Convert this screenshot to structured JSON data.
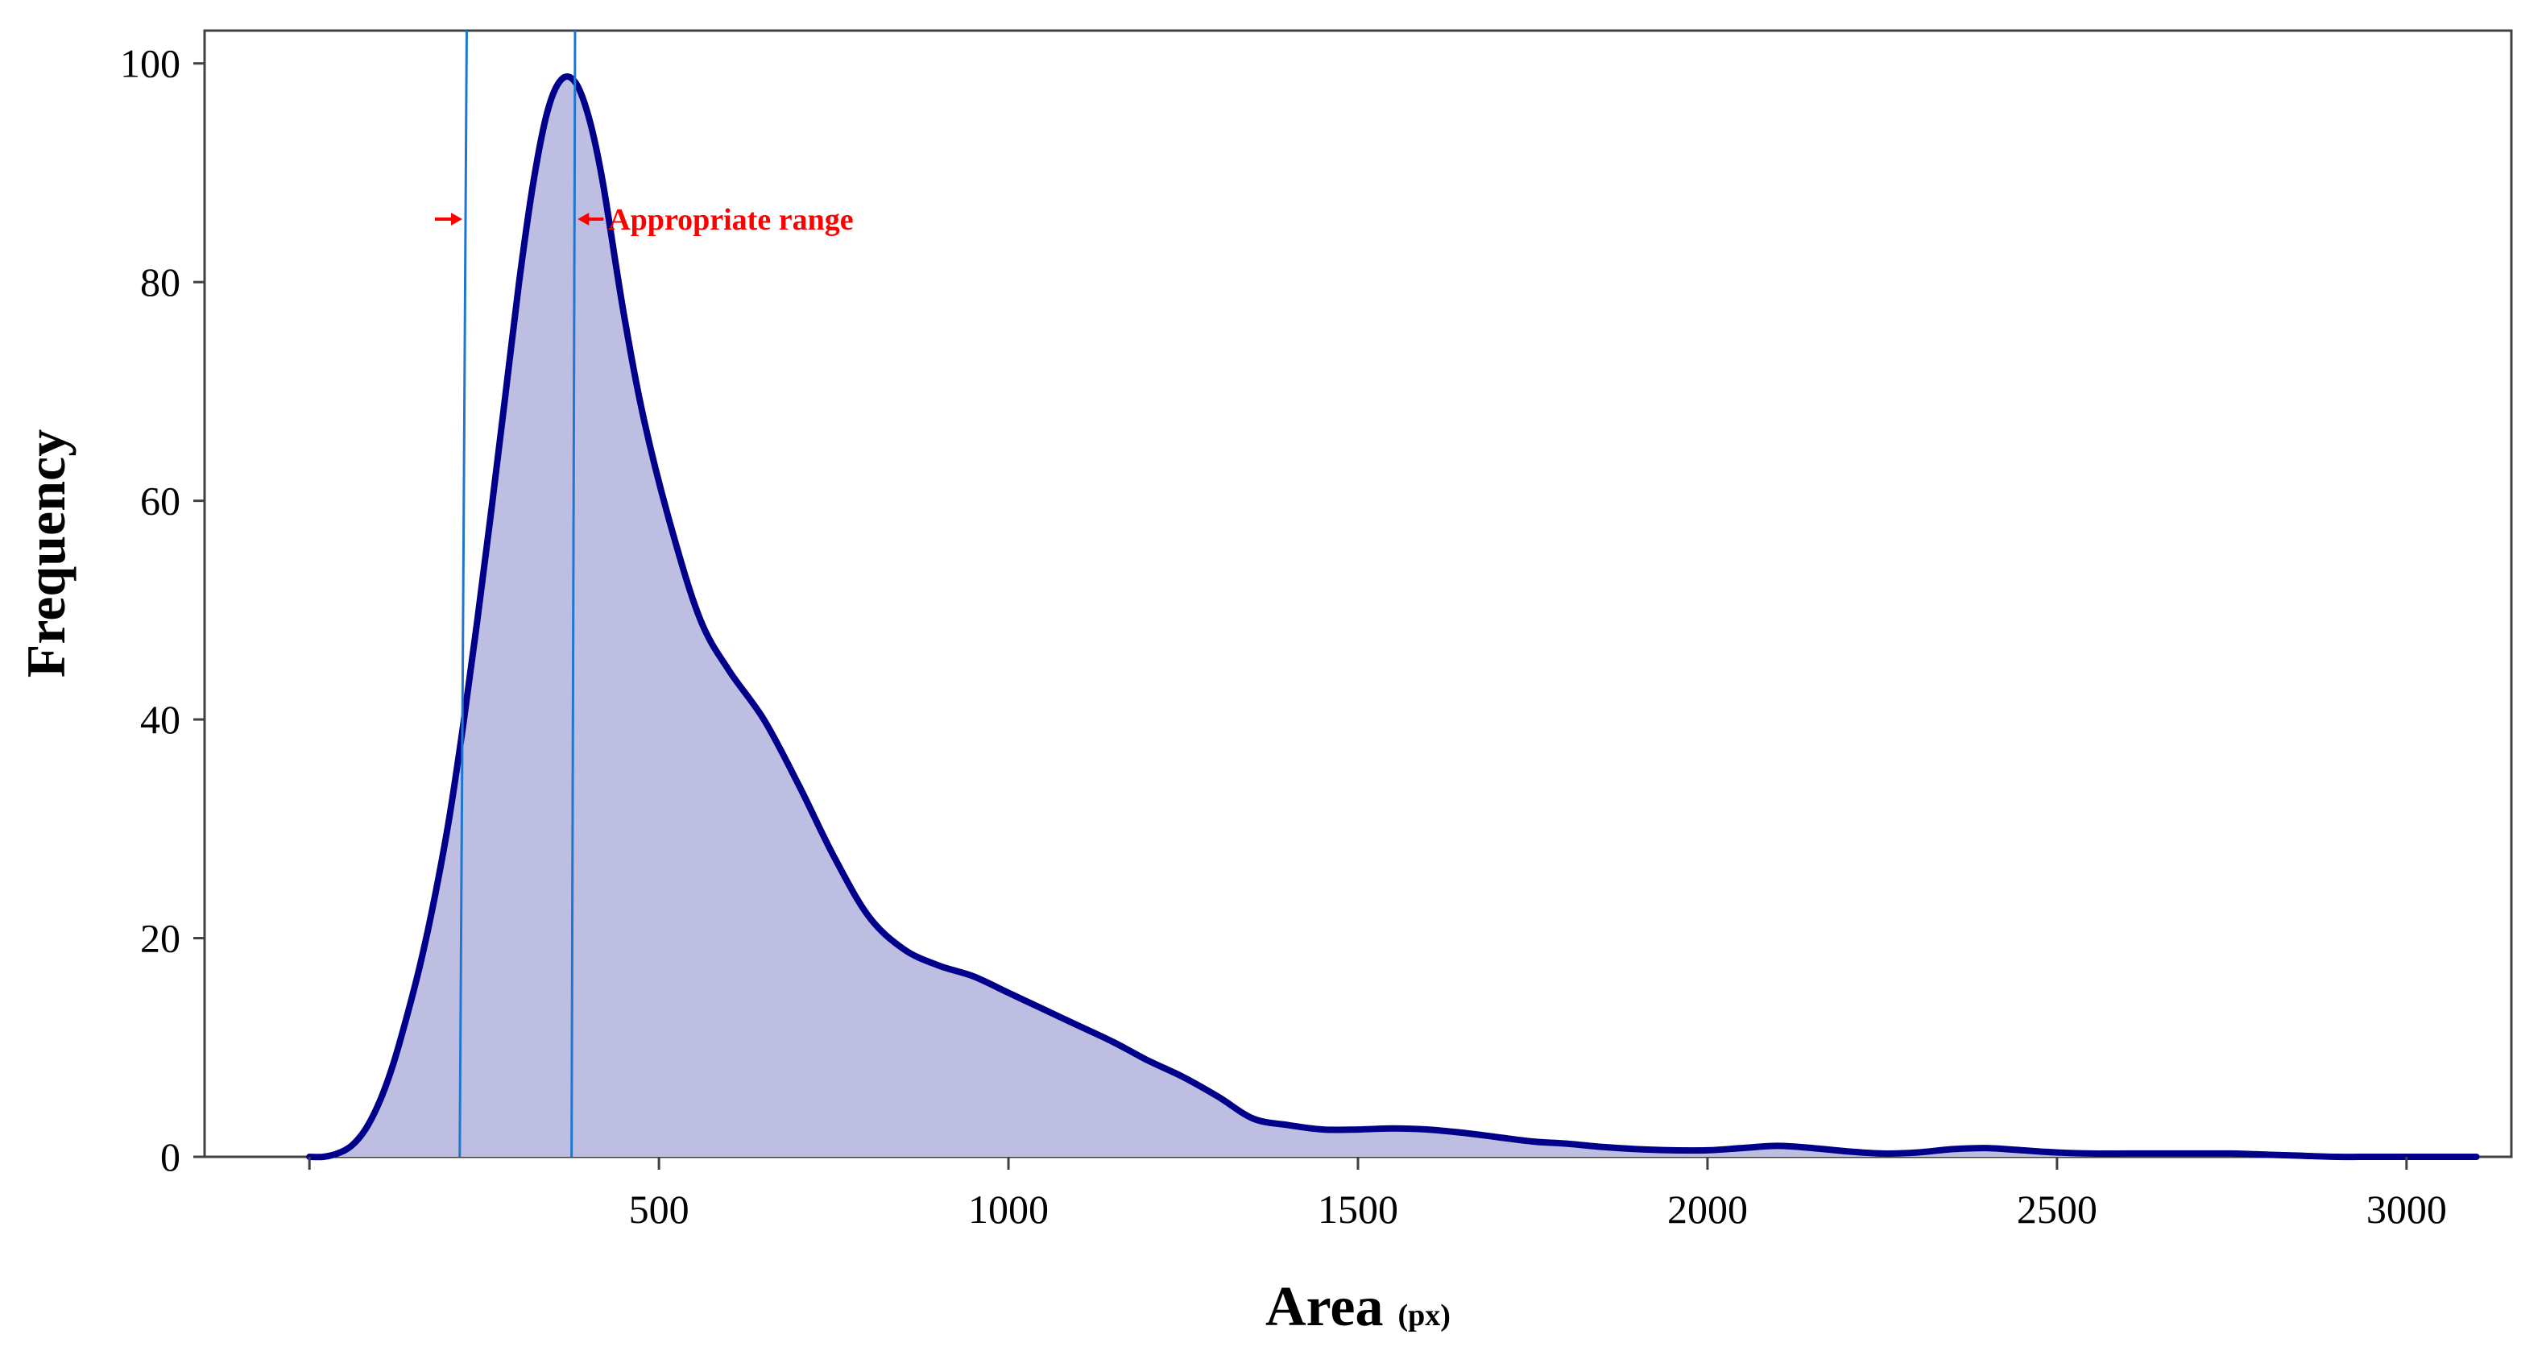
{
  "chart_data": {
    "type": "area",
    "title": "",
    "xlabel": "Area",
    "xlabel_unit": "(px)",
    "ylabel": "Frequency",
    "xlim": [
      -150,
      3150
    ],
    "ylim": [
      0,
      103
    ],
    "x_ticks": [
      500,
      1000,
      1500,
      2000,
      2500,
      3000
    ],
    "x_minor_ticks": [
      0
    ],
    "y_ticks": [
      0,
      20,
      40,
      60,
      80,
      100
    ],
    "grid": false,
    "legend": "none",
    "colors": {
      "line": "#00008B",
      "fill": "#BEBEE2",
      "range_lines": "#1F77D0",
      "annotation": "#FF0000"
    },
    "series": [
      {
        "x": [
          0,
          20,
          40,
          60,
          80,
          100,
          120,
          140,
          160,
          180,
          200,
          220,
          240,
          260,
          280,
          300,
          320,
          340,
          360,
          380,
          400,
          420,
          450,
          480,
          520,
          560,
          600,
          650,
          700,
          750,
          800,
          850,
          900,
          950,
          1000,
          1050,
          1100,
          1150,
          1200,
          1250,
          1300,
          1350,
          1400,
          1450,
          1500,
          1550,
          1600,
          1650,
          1700,
          1750,
          1800,
          1850,
          1900,
          1950,
          2000,
          2050,
          2100,
          2150,
          2200,
          2250,
          2300,
          2350,
          2400,
          2450,
          2500,
          2550,
          2600,
          2650,
          2700,
          2750,
          2800,
          2850,
          2900,
          2950,
          3000,
          3050,
          3100
        ],
        "values": [
          0,
          0,
          0.3,
          1,
          2.5,
          5,
          8.5,
          13,
          18,
          24,
          31,
          39.5,
          49,
          59,
          69.5,
          80,
          89,
          95.5,
          98.5,
          98.3,
          95,
          89,
          77,
          67,
          57,
          49,
          44.5,
          40,
          34,
          27.5,
          22,
          19,
          17.5,
          16.5,
          15,
          13.5,
          12,
          10.5,
          8.8,
          7.3,
          5.5,
          3.5,
          2.9,
          2.5,
          2.5,
          2.6,
          2.5,
          2.2,
          1.8,
          1.4,
          1.2,
          0.9,
          0.7,
          0.6,
          0.6,
          0.8,
          1.0,
          0.8,
          0.5,
          0.3,
          0.4,
          0.7,
          0.8,
          0.6,
          0.4,
          0.3,
          0.3,
          0.3,
          0.3,
          0.3,
          0.2,
          0.1,
          0,
          0,
          0,
          0,
          0
        ]
      }
    ],
    "reference_lines": [
      {
        "x_bottom": 215,
        "x_top": 225
      },
      {
        "x_bottom": 375,
        "x_top": 380
      }
    ],
    "annotations": [
      {
        "text": "Appropriate range"
      }
    ]
  }
}
